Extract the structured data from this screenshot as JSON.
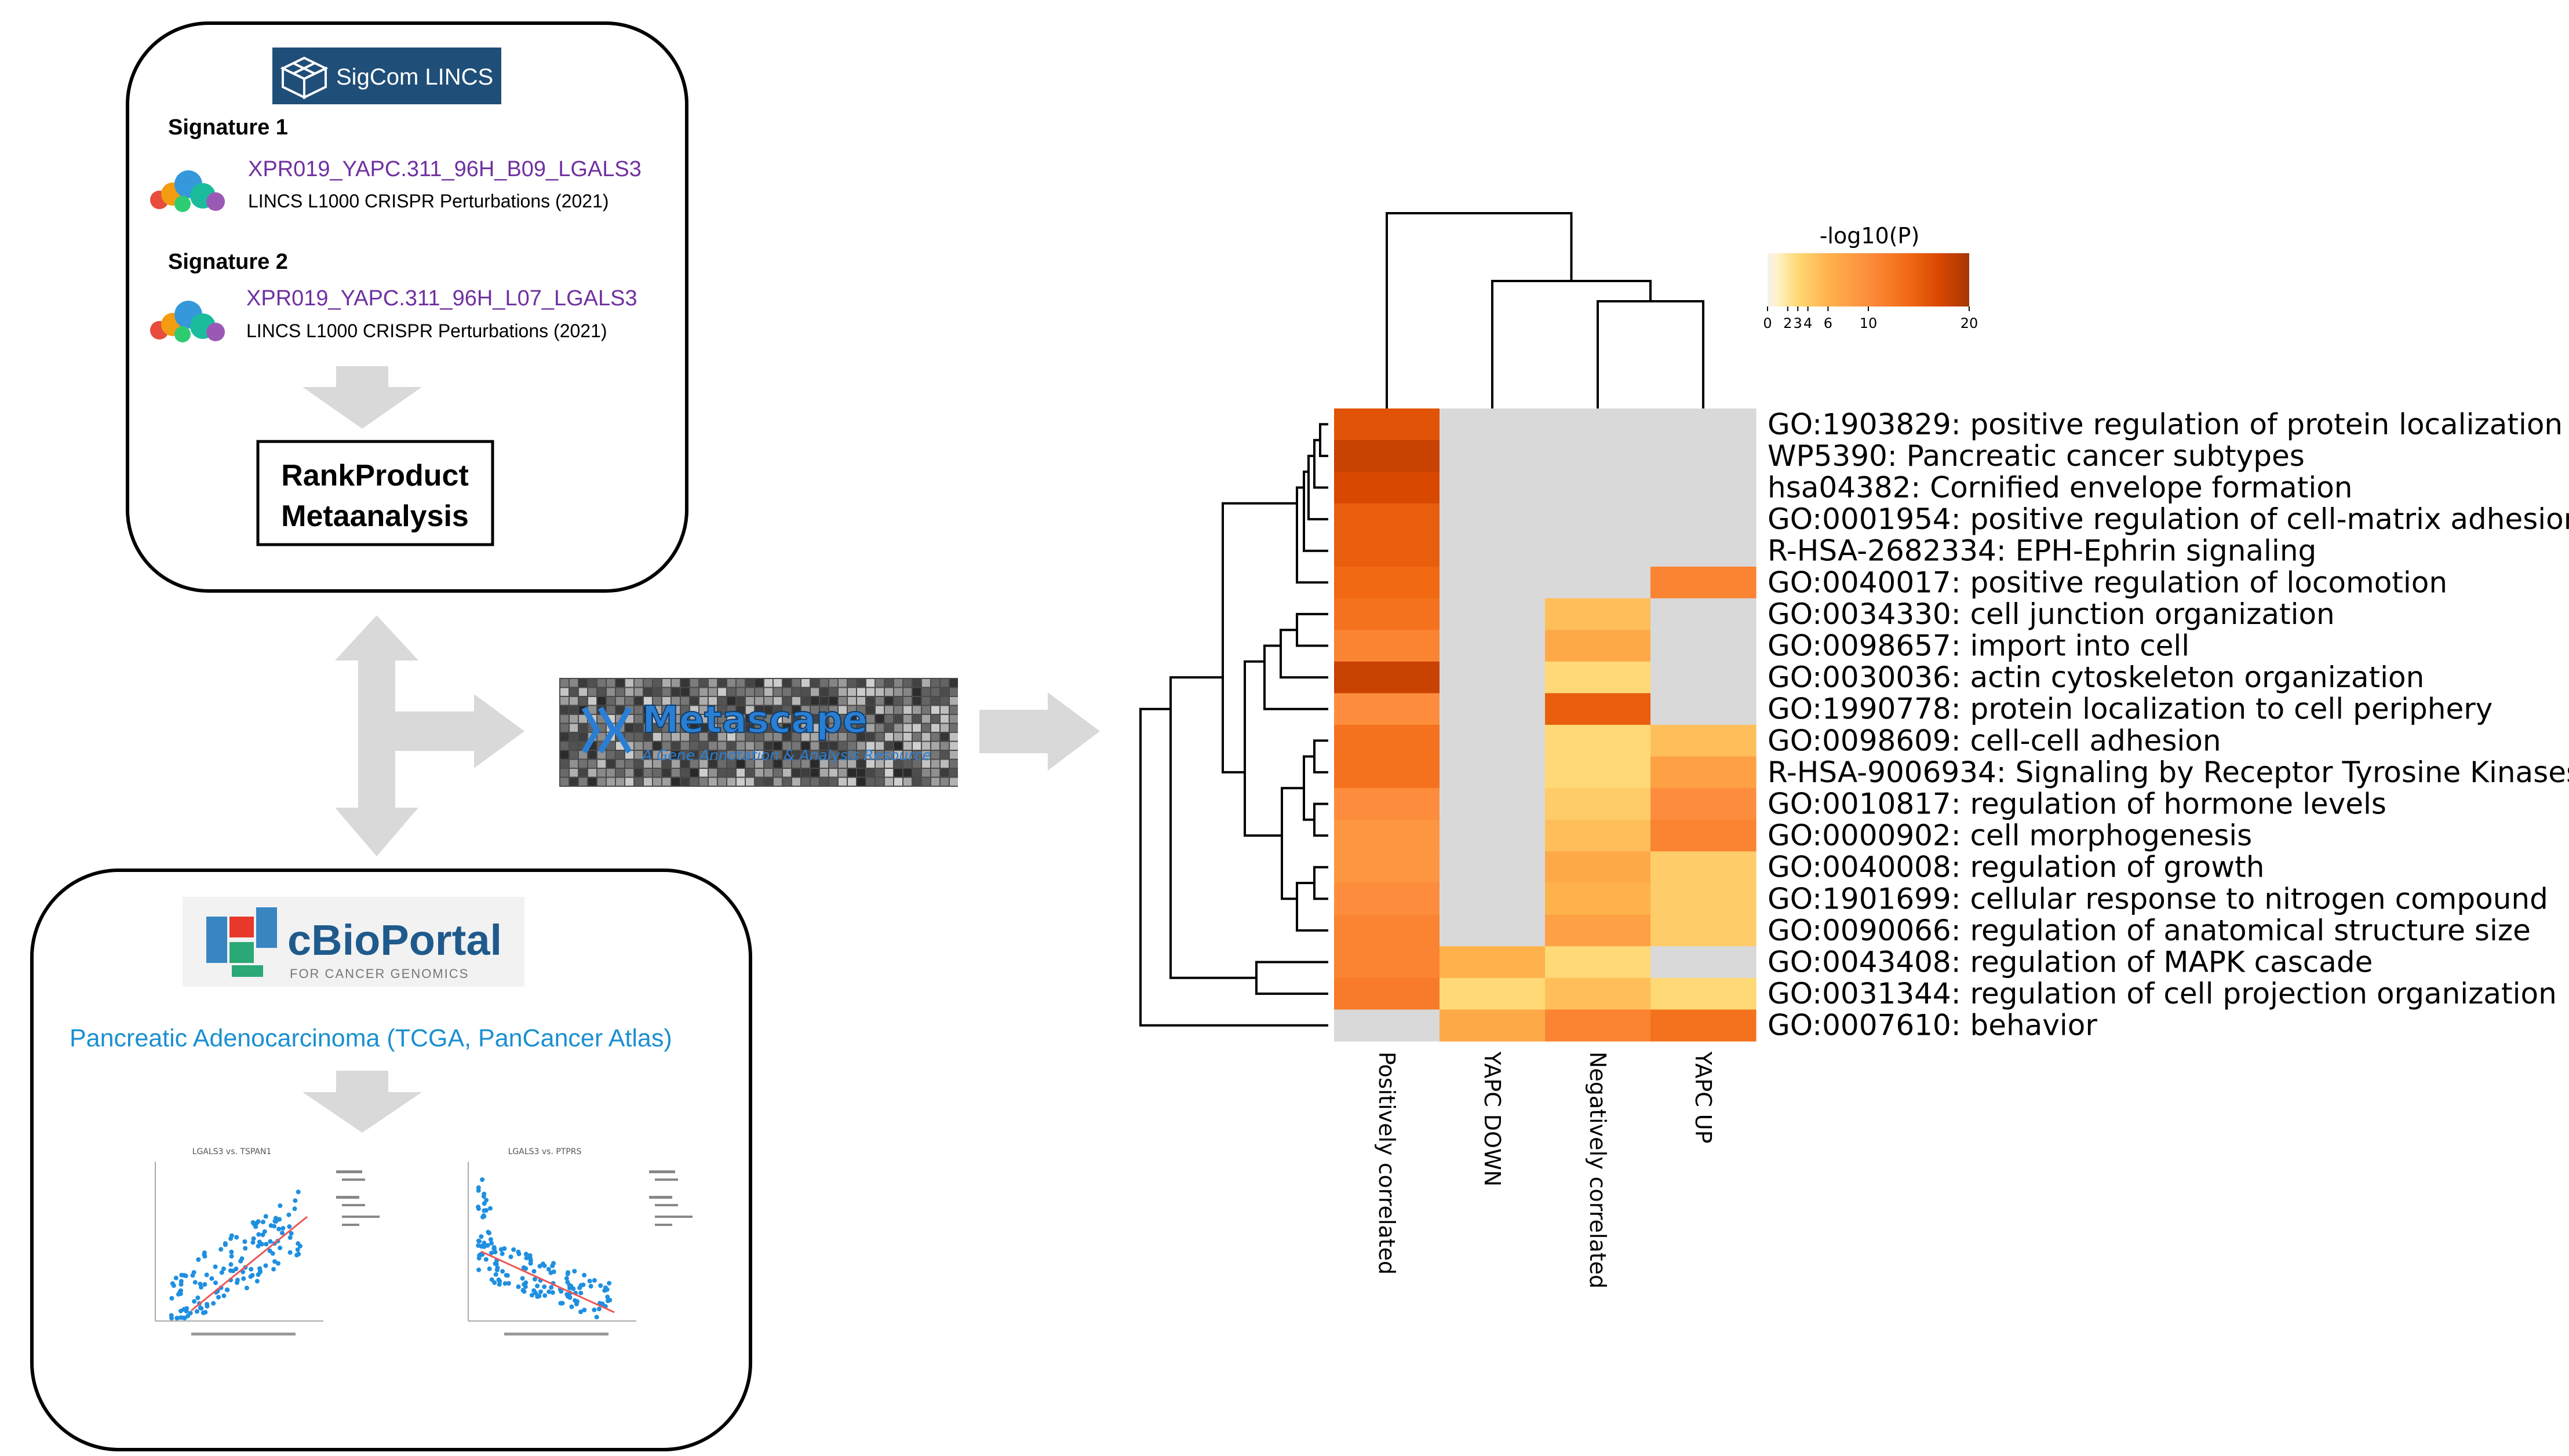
{
  "colors": {
    "arrow": "#d9d9d9",
    "purple": "#7030a0",
    "blue": "#1a8fd1",
    "navy": "#1f4e79",
    "na": "#d9d9d9"
  },
  "sigcom": {
    "logo_text": "SigCom LINCS",
    "sig1_title": "Signature 1",
    "sig1_name": "XPR019_YAPC.311_96H_B09_LGALS3",
    "sig1_source": "LINCS L1000 CRISPR Perturbations (2021)",
    "sig2_title": "Signature 2",
    "sig2_name": "XPR019_YAPC.311_96H_L07_LGALS3",
    "sig2_source": "LINCS L1000 CRISPR Perturbations (2021)",
    "rank_line1": "RankProduct",
    "rank_line2": "Metaanalysis"
  },
  "metascape": {
    "title": "Metascape",
    "subtitle": "A Gene Annotation & Analysis Resource"
  },
  "cbioportal": {
    "logo_text": "cBioPortal",
    "logo_subtitle": "FOR CANCER GENOMICS",
    "study": "Pancreatic Adenocarcinoma (TCGA, PanCancer Atlas)",
    "plot1_title": "LGALS3 vs. TSPAN1",
    "plot2_title": "LGALS3 vs. PTPRS"
  },
  "legend": {
    "title": "-log10(P)",
    "ticks": [
      "0",
      "2",
      "3",
      "4",
      "6",
      "10",
      "20"
    ],
    "max": 20
  },
  "chart_data": {
    "type": "heatmap",
    "value_label": "-log10(P)",
    "columns": [
      "Positively correlated",
      "YAPC DOWN",
      "Negatively correlated",
      "YAPC UP"
    ],
    "rows": [
      {
        "term": "GO:1903829: positive regulation of protein localization",
        "values": [
          16,
          null,
          null,
          null
        ]
      },
      {
        "term": "WP5390: Pancreatic cancer subtypes",
        "values": [
          18,
          null,
          null,
          null
        ]
      },
      {
        "term": "hsa04382: Cornified envelope formation",
        "values": [
          17,
          null,
          null,
          null
        ]
      },
      {
        "term": "GO:0001954: positive regulation of cell-matrix adhesion",
        "values": [
          15,
          null,
          null,
          null
        ]
      },
      {
        "term": "R-HSA-2682334: EPH-Ephrin signaling",
        "values": [
          15,
          null,
          null,
          null
        ]
      },
      {
        "term": "GO:0040017: positive regulation of locomotion",
        "values": [
          14,
          null,
          null,
          11
        ]
      },
      {
        "term": "GO:0034330: cell junction organization",
        "values": [
          13,
          null,
          5,
          null
        ]
      },
      {
        "term": "GO:0098657: import into cell",
        "values": [
          11,
          null,
          7,
          null
        ]
      },
      {
        "term": "GO:0030036: actin cytoskeleton organization",
        "values": [
          18,
          null,
          3,
          null
        ]
      },
      {
        "term": "GO:1990778: protein localization to cell periphery",
        "values": [
          10,
          null,
          15,
          null
        ]
      },
      {
        "term": "GO:0098609: cell-cell adhesion",
        "values": [
          13,
          null,
          3,
          5
        ]
      },
      {
        "term": "R-HSA-9006934: Signaling by Receptor Tyrosine Kinases",
        "values": [
          13,
          null,
          3,
          8
        ]
      },
      {
        "term": "GO:0010817: regulation of hormone levels",
        "values": [
          10,
          null,
          4,
          10
        ]
      },
      {
        "term": "GO:0000902: cell morphogenesis",
        "values": [
          9,
          null,
          5,
          11
        ]
      },
      {
        "term": "GO:0040008: regulation of growth",
        "values": [
          9,
          null,
          7,
          4
        ]
      },
      {
        "term": "GO:1901699: cellular response to nitrogen compound",
        "values": [
          10,
          null,
          6,
          4
        ]
      },
      {
        "term": "GO:0090066: regulation of anatomical structure size",
        "values": [
          11,
          null,
          8,
          4
        ]
      },
      {
        "term": "GO:0043408: regulation of MAPK cascade",
        "values": [
          11,
          6,
          3,
          null
        ]
      },
      {
        "term": "GO:0031344: regulation of cell projection organization",
        "values": [
          12,
          3,
          5,
          3
        ]
      },
      {
        "term": "GO:0007610: behavior",
        "values": [
          null,
          7,
          11,
          13
        ]
      }
    ]
  }
}
